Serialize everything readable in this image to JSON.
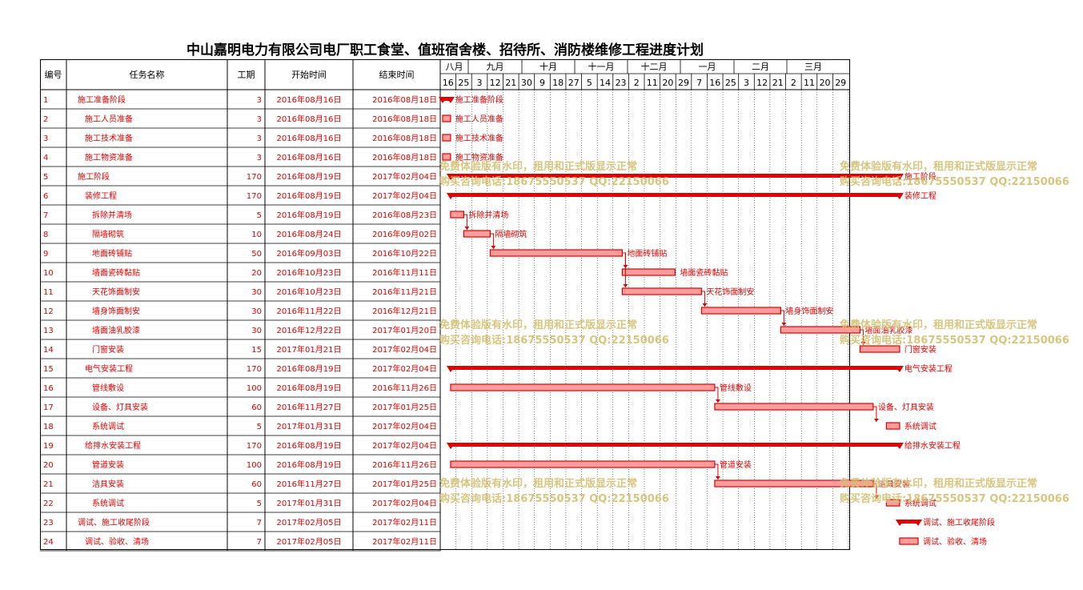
{
  "title": "中山嘉明电力有限公司电厂职工食堂、值班宿舍楼、招待所、消防楼维修工程进度计划",
  "headers": {
    "id": "编号",
    "name": "任务名称",
    "duration": "工期",
    "start": "开始时间",
    "end": "结束时间"
  },
  "timescale": {
    "months": [
      "八月",
      "九月",
      "十月",
      "十一月",
      "十二月",
      "一月",
      "二月",
      "三月"
    ],
    "days": [
      "16",
      "25",
      "3",
      "12",
      "21",
      "30",
      "9",
      "18",
      "27",
      "5",
      "14",
      "23",
      "2",
      "11",
      "20",
      "29",
      "7",
      "16",
      "25",
      "3",
      "12",
      "21",
      "2",
      "11",
      "20",
      "29"
    ]
  },
  "tasks": [
    {
      "id": "1",
      "name": "施工准备阶段",
      "duration": "3",
      "start": "2016年08月16日",
      "end": "2016年08月18日",
      "level": 0,
      "summary": true,
      "label": "施工准备阶段"
    },
    {
      "id": "2",
      "name": "施工人员准备",
      "duration": "3",
      "start": "2016年08月16日",
      "end": "2016年08月18日",
      "level": 1,
      "summary": false,
      "label": "施工人员准备"
    },
    {
      "id": "3",
      "name": "施工技术准备",
      "duration": "3",
      "start": "2016年08月16日",
      "end": "2016年08月18日",
      "level": 1,
      "summary": false,
      "label": "施工技术准备"
    },
    {
      "id": "4",
      "name": "施工物资准备",
      "duration": "3",
      "start": "2016年08月16日",
      "end": "2016年08月18日",
      "level": 1,
      "summary": false,
      "label": "施工物资准备"
    },
    {
      "id": "5",
      "name": "施工阶段",
      "duration": "170",
      "start": "2016年08月19日",
      "end": "2017年02月04日",
      "level": 0,
      "summary": true,
      "label": "施工阶段"
    },
    {
      "id": "6",
      "name": "装修工程",
      "duration": "170",
      "start": "2016年08月19日",
      "end": "2017年02月04日",
      "level": 1,
      "summary": true,
      "label": "装修工程"
    },
    {
      "id": "7",
      "name": "拆除并清场",
      "duration": "5",
      "start": "2016年08月19日",
      "end": "2016年08月23日",
      "level": 2,
      "summary": false,
      "label": "拆除并清场"
    },
    {
      "id": "8",
      "name": "隔墙砌筑",
      "duration": "10",
      "start": "2016年08月24日",
      "end": "2016年09月02日",
      "level": 2,
      "summary": false,
      "label": "隔墙砌筑"
    },
    {
      "id": "9",
      "name": "地面砖铺贴",
      "duration": "50",
      "start": "2016年09月03日",
      "end": "2016年10月22日",
      "level": 2,
      "summary": false,
      "label": "地面砖铺贴"
    },
    {
      "id": "10",
      "name": "墙面瓷砖黏贴",
      "duration": "20",
      "start": "2016年10月23日",
      "end": "2016年11月11日",
      "level": 2,
      "summary": false,
      "label": "墙面瓷砖黏贴"
    },
    {
      "id": "11",
      "name": "天花饰面制安",
      "duration": "30",
      "start": "2016年10月23日",
      "end": "2016年11月21日",
      "level": 2,
      "summary": false,
      "label": "天花饰面制安"
    },
    {
      "id": "12",
      "name": "墙身饰面制安",
      "duration": "30",
      "start": "2016年11月22日",
      "end": "2016年12月21日",
      "level": 2,
      "summary": false,
      "label": "墙身饰面制安"
    },
    {
      "id": "13",
      "name": "墙面油乳胶漆",
      "duration": "30",
      "start": "2016年12月22日",
      "end": "2017年01月20日",
      "level": 2,
      "summary": false,
      "label": "墙面油乳胶漆"
    },
    {
      "id": "14",
      "name": "门窗安装",
      "duration": "15",
      "start": "2017年01月21日",
      "end": "2017年02月04日",
      "level": 2,
      "summary": false,
      "label": "门窗安装"
    },
    {
      "id": "15",
      "name": "电气安装工程",
      "duration": "170",
      "start": "2016年08月19日",
      "end": "2017年02月04日",
      "level": 1,
      "summary": true,
      "label": "电气安装工程"
    },
    {
      "id": "16",
      "name": "管线敷设",
      "duration": "100",
      "start": "2016年08月19日",
      "end": "2016年11月26日",
      "level": 2,
      "summary": false,
      "label": "管线敷设"
    },
    {
      "id": "17",
      "name": "设备、灯具安装",
      "duration": "60",
      "start": "2016年11月27日",
      "end": "2017年01月25日",
      "level": 2,
      "summary": false,
      "label": "设备、灯具安装"
    },
    {
      "id": "18",
      "name": "系统调试",
      "duration": "5",
      "start": "2017年01月31日",
      "end": "2017年02月04日",
      "level": 2,
      "summary": false,
      "label": "系统调试"
    },
    {
      "id": "19",
      "name": "给排水安装工程",
      "duration": "170",
      "start": "2016年08月19日",
      "end": "2017年02月04日",
      "level": 1,
      "summary": true,
      "label": "给排水安装工程"
    },
    {
      "id": "20",
      "name": "管道安装",
      "duration": "100",
      "start": "2016年08月19日",
      "end": "2016年11月26日",
      "level": 2,
      "summary": false,
      "label": "管道安装"
    },
    {
      "id": "21",
      "name": "洁具安装",
      "duration": "60",
      "start": "2016年11月27日",
      "end": "2017年01月25日",
      "level": 2,
      "summary": false,
      "label": "洁具安装"
    },
    {
      "id": "22",
      "name": "系统调试",
      "duration": "5",
      "start": "2017年01月31日",
      "end": "2017年02月04日",
      "level": 2,
      "summary": false,
      "label": "系统调试"
    },
    {
      "id": "23",
      "name": "调试、施工收尾阶段",
      "duration": "7",
      "start": "2017年02月05日",
      "end": "2017年02月11日",
      "level": 0,
      "summary": true,
      "label": "调试、施工收尾阶段"
    },
    {
      "id": "24",
      "name": "调试、验收、清场",
      "duration": "7",
      "start": "2017年02月05日",
      "end": "2017年02月11日",
      "level": 1,
      "summary": false,
      "label": "调试、验收、清场"
    }
  ],
  "watermark": {
    "line1": "免费体验版有水印，租用和正式版显示正常",
    "line2": "购买咨询电话:18675550537 QQ:22150066"
  },
  "colors": {
    "task": "#e00000",
    "grid": "#000000",
    "watermark": "#d2bf72"
  }
}
